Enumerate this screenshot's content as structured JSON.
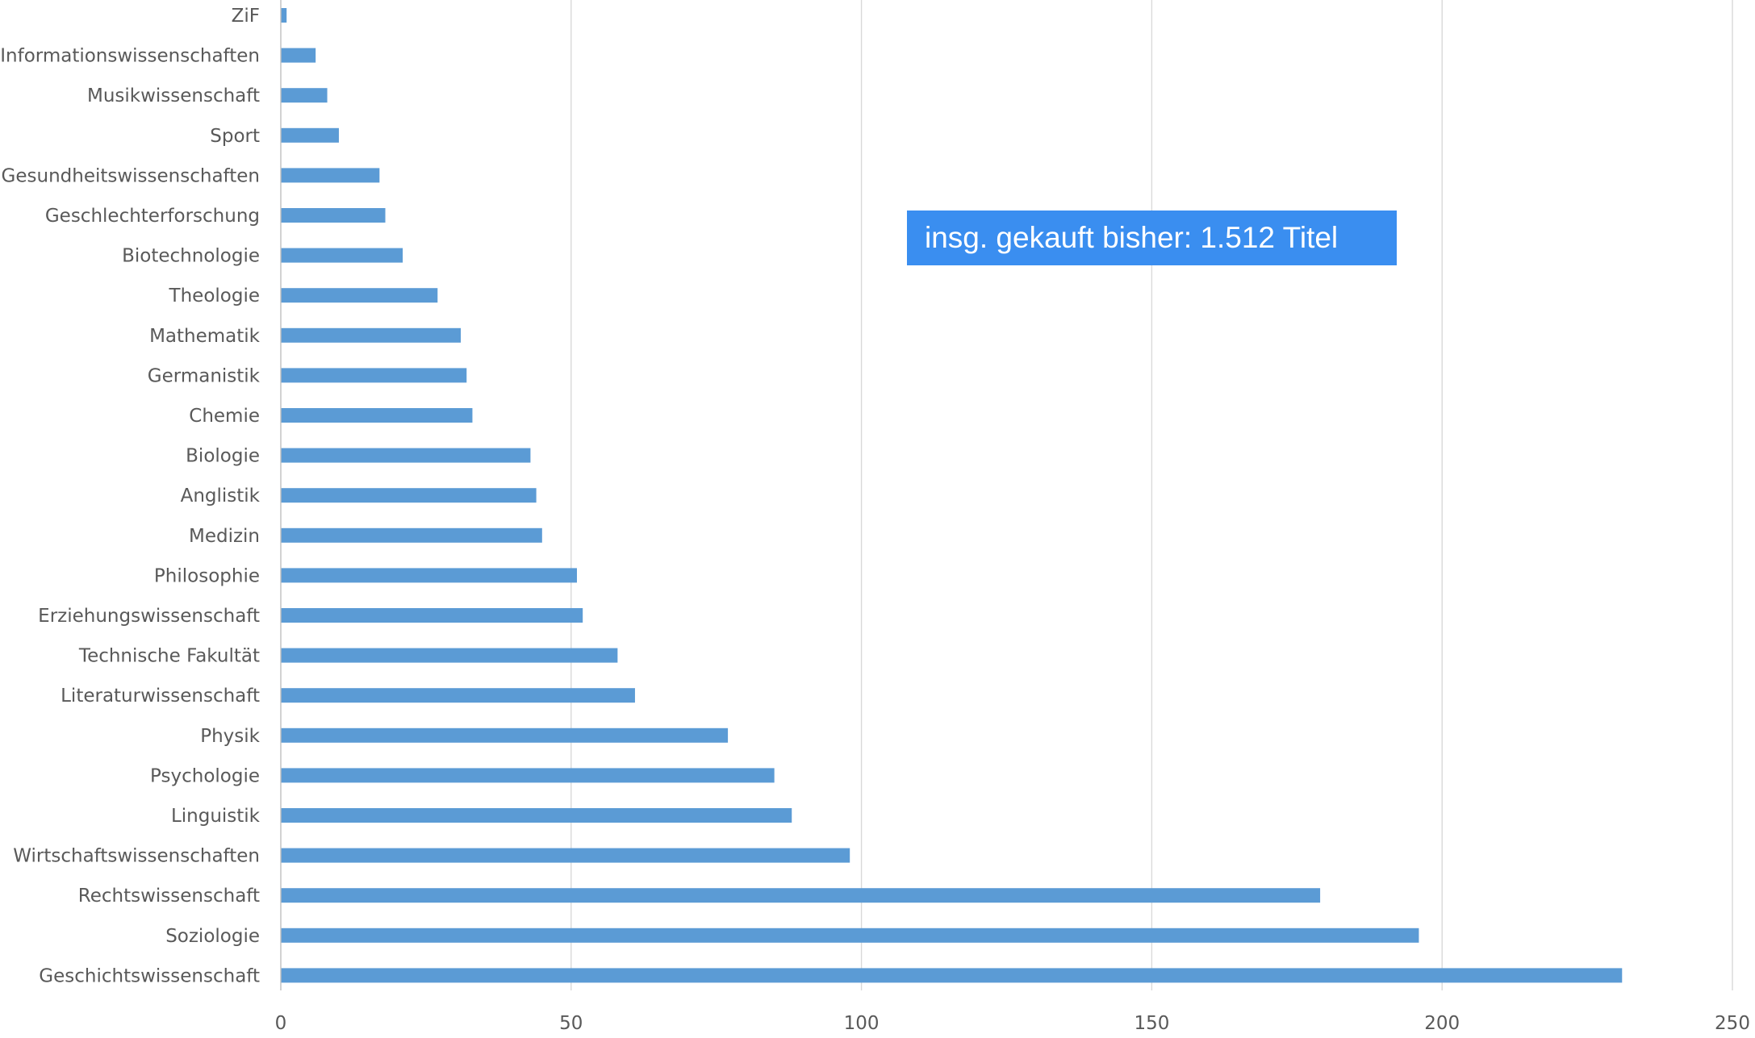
{
  "colors": {
    "bar": "#5b9bd5",
    "gridline": "#d9d9d9",
    "text": "#595959",
    "annotation_bg": "#3a8ef0",
    "annotation_text": "#ffffff"
  },
  "annotation": {
    "text": "insg. gekauft bisher: 1.512 Titel"
  },
  "chart_data": {
    "type": "bar",
    "orientation": "horizontal",
    "title": "",
    "xlabel": "",
    "ylabel": "",
    "xlim": [
      0,
      250
    ],
    "xticks": [
      0,
      50,
      100,
      150,
      200,
      250
    ],
    "grid": true,
    "legend": "none",
    "categories": [
      "ZiF",
      "Informationswissenschaften",
      "Musikwissenschaft",
      "Sport",
      "Gesundheitswissenschaften",
      "Geschlechterforschung",
      "Biotechnologie",
      "Theologie",
      "Mathematik",
      "Germanistik",
      "Chemie",
      "Biologie",
      "Anglistik",
      "Medizin",
      "Philosophie",
      "Erziehungswissenschaft",
      "Technische Fakultät",
      "Literaturwissenschaft",
      "Physik",
      "Psychologie",
      "Linguistik",
      "Wirtschaftswissenschaften",
      "Rechtswissenschaft",
      "Soziologie",
      "Geschichtswissenschaft"
    ],
    "values": [
      1,
      6,
      8,
      10,
      17,
      18,
      21,
      27,
      31,
      32,
      33,
      43,
      44,
      45,
      51,
      52,
      58,
      61,
      77,
      85,
      88,
      98,
      179,
      196,
      231
    ]
  }
}
